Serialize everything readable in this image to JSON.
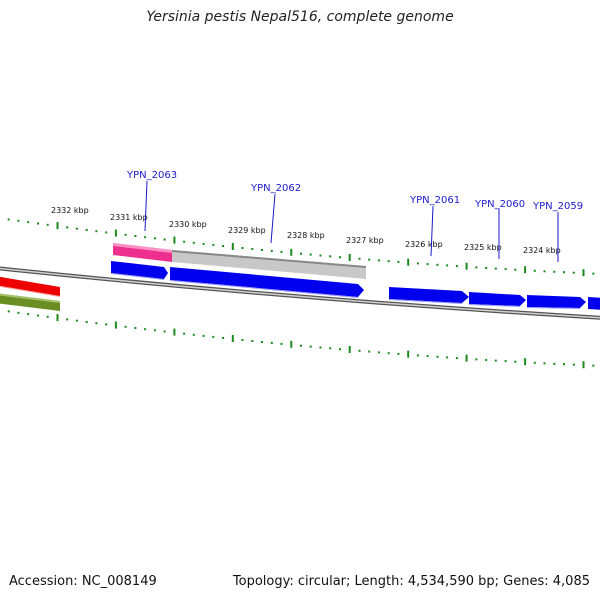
{
  "title": "Yersinia pestis Nepal516, complete genome",
  "footer": {
    "accession": "Accession: NC_008149",
    "summary": "Topology: circular; Length: 4,534,590 bp; Genes: 4,085"
  },
  "scale_labels": [
    "2332 kbp",
    "2331 kbp",
    "2330 kbp",
    "2329 kbp",
    "2328 kbp",
    "2327 kbp",
    "2326 kbp",
    "2325 kbp",
    "2324 kbp"
  ],
  "gene_labels": [
    "YPN_2063",
    "YPN_2062",
    "YPN_2061",
    "YPN_2060",
    "YPN_2059"
  ],
  "colors": {
    "backbone": "#808080",
    "ticks": "#1a8a1a",
    "gene_blue": "#0000ee",
    "gene_label": "#1a1acc",
    "feature_red": "#ee0000",
    "feature_olive": "#6b8e23",
    "feature_pink": "#ee2f8f",
    "feature_gray": "#c8c8c8"
  }
}
